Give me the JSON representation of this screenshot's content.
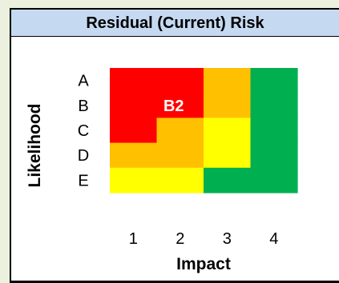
{
  "chart_data": {
    "type": "heatmap",
    "title": "Residual (Current) Risk",
    "xlabel": "Impact",
    "ylabel": "Likelihood",
    "x_categories": [
      "1",
      "2",
      "3",
      "4"
    ],
    "y_categories": [
      "A",
      "B",
      "C",
      "D",
      "E"
    ],
    "cells": [
      {
        "likelihood": "A",
        "impact": "1",
        "level": "red"
      },
      {
        "likelihood": "A",
        "impact": "2",
        "level": "red"
      },
      {
        "likelihood": "A",
        "impact": "3",
        "level": "orange"
      },
      {
        "likelihood": "A",
        "impact": "4",
        "level": "green"
      },
      {
        "likelihood": "B",
        "impact": "1",
        "level": "red"
      },
      {
        "likelihood": "B",
        "impact": "2",
        "level": "red"
      },
      {
        "likelihood": "B",
        "impact": "3",
        "level": "orange"
      },
      {
        "likelihood": "B",
        "impact": "4",
        "level": "green"
      },
      {
        "likelihood": "C",
        "impact": "1",
        "level": "red"
      },
      {
        "likelihood": "C",
        "impact": "2",
        "level": "orange"
      },
      {
        "likelihood": "C",
        "impact": "3",
        "level": "yellow"
      },
      {
        "likelihood": "C",
        "impact": "4",
        "level": "green"
      },
      {
        "likelihood": "D",
        "impact": "1",
        "level": "orange"
      },
      {
        "likelihood": "D",
        "impact": "2",
        "level": "orange"
      },
      {
        "likelihood": "D",
        "impact": "3",
        "level": "yellow"
      },
      {
        "likelihood": "D",
        "impact": "4",
        "level": "green"
      },
      {
        "likelihood": "E",
        "impact": "1",
        "level": "yellow"
      },
      {
        "likelihood": "E",
        "impact": "2",
        "level": "yellow"
      },
      {
        "likelihood": "E",
        "impact": "3",
        "level": "green"
      },
      {
        "likelihood": "E",
        "impact": "4",
        "level": "green"
      }
    ],
    "marker": {
      "label": "B2",
      "likelihood": "B",
      "impact": "2"
    },
    "colors": {
      "red": "#ff0000",
      "orange": "#ffc000",
      "yellow": "#ffff00",
      "green": "#00b050",
      "title_bg": "#c5d9f1",
      "page_bg": "#ebf1de",
      "marker_text": "#ffffff"
    },
    "grid": false
  }
}
